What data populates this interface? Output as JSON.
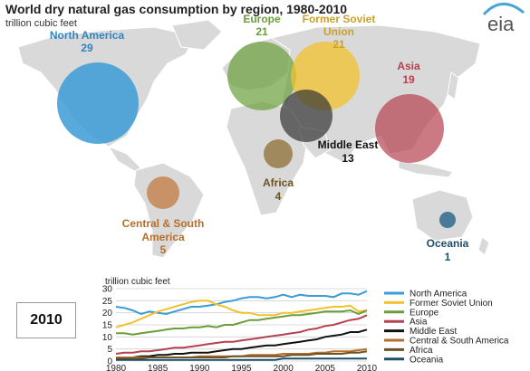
{
  "title": "World dry natural gas consumption by region, 1980-2010",
  "unit": "trillion cubic feet",
  "logo_text": "eia",
  "year_box": "2010",
  "colors": {
    "north_america": "#3a9bd5",
    "former_soviet_union": "#f2c12e",
    "europe": "#6a9e3a",
    "asia": "#b5424e",
    "middle_east": "#222222",
    "central_south_america": "#b86d2c",
    "africa": "#6b5423",
    "oceania": "#1f4e6b"
  },
  "map": {
    "bubbles": [
      {
        "key": "north_america",
        "name": "North America",
        "value": "29",
        "color": "#3a9bd5",
        "label_color": "#2f86c4"
      },
      {
        "key": "europe",
        "name": "Europe",
        "value": "21",
        "color": "#6a9e3a",
        "label_color": "#6a9e3a"
      },
      {
        "key": "former_soviet_union",
        "name": "Former Soviet\nUnion",
        "value": "21",
        "color": "#f2c12e",
        "label_color": "#c9a12a"
      },
      {
        "key": "asia",
        "name": "Asia",
        "value": "19",
        "color": "#b5424e",
        "label_color": "#b5424e"
      },
      {
        "key": "middle_east",
        "name": "Middle East",
        "value": "13",
        "color": "#333333",
        "label_color": "#111111"
      },
      {
        "key": "africa",
        "name": "Africa",
        "value": "4",
        "color": "#8c6d33",
        "label_color": "#6b5423"
      },
      {
        "key": "central_south_america",
        "name": "Central & South\nAmerica",
        "value": "5",
        "color": "#c27a3f",
        "label_color": "#b86d2c"
      },
      {
        "key": "oceania",
        "name": "Oceania",
        "value": "1",
        "color": "#2f6a8c",
        "label_color": "#1f4e6b"
      }
    ]
  },
  "chart_data": {
    "type": "line",
    "title": "World dry natural gas consumption by region, 1980-2010",
    "ylabel": "trillion cubic feet",
    "xlabel": "",
    "xlim": [
      1980,
      2010
    ],
    "ylim": [
      0,
      30
    ],
    "x_ticks": [
      1980,
      1985,
      1990,
      1995,
      2000,
      2005,
      2010
    ],
    "y_ticks": [
      0,
      5,
      10,
      15,
      20,
      25,
      30
    ],
    "grid": "horizontal",
    "legend": "right",
    "x": [
      1980,
      1981,
      1982,
      1983,
      1984,
      1985,
      1986,
      1987,
      1988,
      1989,
      1990,
      1991,
      1992,
      1993,
      1994,
      1995,
      1996,
      1997,
      1998,
      1999,
      2000,
      2001,
      2002,
      2003,
      2004,
      2005,
      2006,
      2007,
      2008,
      2009,
      2010
    ],
    "series": [
      {
        "name": "North America",
        "color": "#3a9bd5",
        "values": [
          22.5,
          22,
          21,
          19.5,
          20.5,
          20,
          19.5,
          20.5,
          21.5,
          22.5,
          22.5,
          23,
          23.5,
          24.5,
          25,
          26,
          26.5,
          26.5,
          26,
          26.5,
          27.5,
          26.5,
          27.5,
          27,
          27,
          27,
          26.5,
          28,
          28,
          27.5,
          29
        ]
      },
      {
        "name": "Former Soviet Union",
        "color": "#f2c12e",
        "values": [
          14,
          15,
          16,
          17.5,
          19,
          20.5,
          21.5,
          22.5,
          23.5,
          24.5,
          25,
          25,
          23.5,
          22.5,
          21,
          20,
          20,
          19,
          19,
          19,
          20,
          20,
          20.5,
          21,
          21.5,
          22,
          22.5,
          22.5,
          23,
          20.5,
          21
        ]
      },
      {
        "name": "Europe",
        "color": "#6a9e3a",
        "values": [
          11.5,
          11.5,
          11,
          11.5,
          12,
          12.5,
          13,
          13.5,
          13.5,
          14,
          14,
          14.5,
          14,
          15,
          15,
          16,
          17,
          17,
          17.5,
          18,
          18.5,
          19,
          19,
          19.5,
          20,
          20.5,
          20.5,
          20.5,
          21,
          19.5,
          21
        ]
      },
      {
        "name": "Asia",
        "color": "#b5424e",
        "values": [
          3,
          3.5,
          3.5,
          4,
          4,
          4.5,
          5,
          5.5,
          5.5,
          6,
          6.5,
          7,
          7.5,
          8,
          8,
          8.5,
          9,
          9.5,
          10,
          10.5,
          11,
          11.5,
          12,
          13,
          13.5,
          14.5,
          15,
          16,
          17,
          17.5,
          19
        ]
      },
      {
        "name": "Middle East",
        "color": "#111111",
        "values": [
          1.5,
          1.5,
          1.5,
          2,
          2,
          2.5,
          2.5,
          3,
          3,
          3.5,
          3.5,
          3.5,
          4,
          4.5,
          5,
          5,
          5.5,
          6,
          6.5,
          6.5,
          7,
          7.5,
          8,
          8.5,
          9,
          10,
          10.5,
          11,
          12,
          12,
          13
        ]
      },
      {
        "name": "Central & South America",
        "color": "#b86d2c",
        "values": [
          1.5,
          1.5,
          1.5,
          1.5,
          1.5,
          1.5,
          1.5,
          1.5,
          1.5,
          1.5,
          2,
          2,
          2,
          2,
          2,
          2,
          2.5,
          2.5,
          2.5,
          2.5,
          3,
          3,
          3,
          3,
          3.5,
          3.5,
          4,
          4,
          4,
          4.5,
          5
        ]
      },
      {
        "name": "Africa",
        "color": "#6b5423",
        "values": [
          1,
          1,
          1,
          1,
          1.5,
          1.5,
          1.5,
          1.5,
          1.5,
          1.5,
          1.5,
          1.5,
          1.5,
          1.5,
          2,
          2,
          2,
          2,
          2,
          2,
          2,
          2.5,
          2.5,
          2.5,
          3,
          3,
          3,
          3,
          3.5,
          3.5,
          4
        ]
      },
      {
        "name": "Oceania",
        "color": "#1f4e6b",
        "values": [
          0.5,
          0.5,
          0.5,
          0.5,
          0.5,
          0.5,
          0.5,
          0.5,
          0.5,
          0.5,
          0.5,
          0.5,
          0.5,
          0.5,
          0.5,
          0.5,
          0.5,
          0.5,
          0.5,
          0.5,
          1,
          1,
          1,
          1,
          1,
          1,
          1,
          1,
          1,
          1,
          1
        ]
      }
    ]
  }
}
